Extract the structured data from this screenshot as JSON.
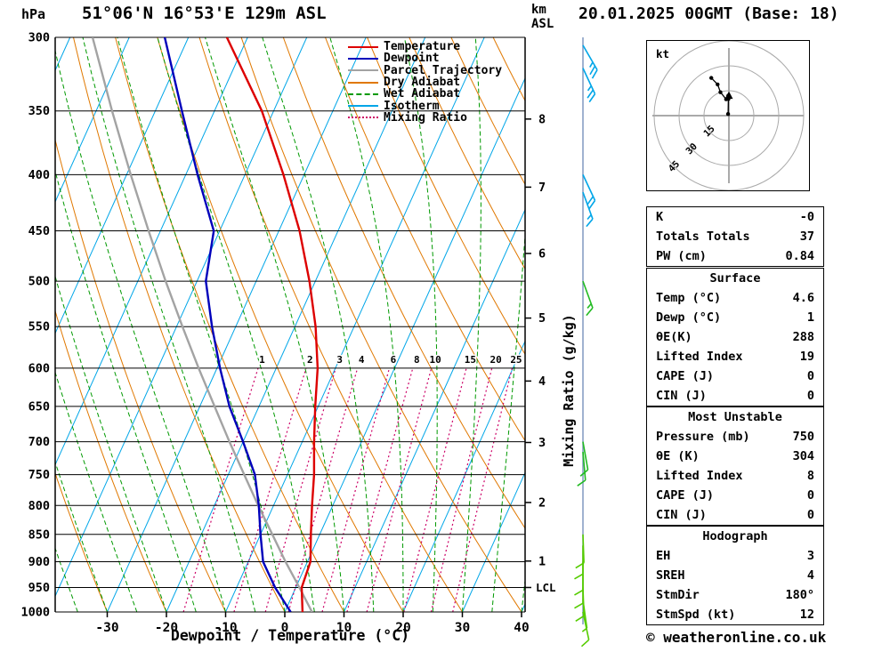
{
  "header": {
    "pressure_unit": "hPa",
    "station_title": "51°06'N 16°53'E 129m ASL",
    "km_label": "km",
    "asl_label": "ASL",
    "run_title": "20.01.2025 00GMT (Base: 18)"
  },
  "legend": {
    "items": [
      {
        "label": "Temperature",
        "color": "#dd0000",
        "style": "solid"
      },
      {
        "label": "Dewpoint",
        "color": "#0000bb",
        "style": "solid"
      },
      {
        "label": "Parcel Trajectory",
        "color": "#a3a3a3",
        "style": "solid"
      },
      {
        "label": "Dry Adiabat",
        "color": "#e07800",
        "style": "solid"
      },
      {
        "label": "Wet Adiabat",
        "color": "#009900",
        "style": "dashed"
      },
      {
        "label": "Isotherm",
        "color": "#00a6e8",
        "style": "solid"
      },
      {
        "label": "Mixing Ratio",
        "color": "#cc0066",
        "style": "dotted"
      }
    ]
  },
  "axes": {
    "pressure_ticks": [
      300,
      350,
      400,
      450,
      500,
      550,
      600,
      650,
      700,
      750,
      800,
      850,
      900,
      950,
      1000
    ],
    "temp_ticks": [
      -30,
      -20,
      -10,
      0,
      10,
      20,
      30,
      40
    ],
    "x_label": "Dewpoint / Temperature (°C)",
    "km_ticks": [
      1,
      2,
      3,
      4,
      5,
      6,
      7,
      8
    ],
    "lcl_label": "LCL",
    "mixing_axis_label": "Mixing Ratio (g/kg)"
  },
  "colors": {
    "temperature": "#dd0000",
    "dewpoint": "#0000bb",
    "parcel_trajectory": "#a3a3a3",
    "dry_adiabat": "#e07800",
    "wet_adiabat": "#009900",
    "isotherm": "#00a6e8",
    "mixing_ratio": "#cc0066",
    "grid": "#000000",
    "wind_staff": "#8099c0",
    "barb_upper": "#00a6e8",
    "barb_mid": "#22bb22",
    "barb_lower": "#55cc00"
  },
  "chart_data": {
    "type": "skewt-logp",
    "pressure_axis_range_hpa": [
      300,
      1000
    ],
    "temperature_axis_range_c": [
      -40,
      40
    ],
    "mixing_ratio_lines_gkg": [
      1,
      2,
      3,
      4,
      6,
      8,
      10,
      15,
      20,
      25
    ],
    "lcl_pressure_hpa": 950,
    "sounding": {
      "pressure_hpa": [
        1000,
        950,
        900,
        850,
        800,
        750,
        700,
        650,
        600,
        550,
        500,
        450,
        400,
        350,
        300
      ],
      "temperature_c": [
        3.0,
        1.0,
        0.5,
        -1.5,
        -3.5,
        -5.5,
        -8.0,
        -10.5,
        -13.0,
        -16.5,
        -21.0,
        -26.5,
        -33.5,
        -42.0,
        -53.5
      ],
      "dewpoint_c": [
        1.0,
        -3.5,
        -7.5,
        -10.0,
        -12.5,
        -15.5,
        -20.0,
        -25.0,
        -29.5,
        -34.0,
        -38.5,
        -41.0,
        -48.0,
        -55.5,
        -64.0
      ],
      "parcel_c": [
        4.6,
        0.6,
        -3.7,
        -8.0,
        -12.6,
        -17.3,
        -22.3,
        -27.5,
        -33.1,
        -39.0,
        -45.3,
        -52.0,
        -59.3,
        -67.3,
        -76.2
      ]
    },
    "wind_barbs": [
      {
        "p": 305,
        "speed_kt": 25,
        "dir_deg": 150
      },
      {
        "p": 320,
        "speed_kt": 25,
        "dir_deg": 155
      },
      {
        "p": 400,
        "speed_kt": 20,
        "dir_deg": 155
      },
      {
        "p": 415,
        "speed_kt": 15,
        "dir_deg": 160
      },
      {
        "p": 500,
        "speed_kt": 15,
        "dir_deg": 160
      },
      {
        "p": 700,
        "speed_kt": 10,
        "dir_deg": 170
      },
      {
        "p": 715,
        "speed_kt": 10,
        "dir_deg": 175
      },
      {
        "p": 850,
        "speed_kt": 12,
        "dir_deg": 178
      },
      {
        "p": 870,
        "speed_kt": 12,
        "dir_deg": 180
      },
      {
        "p": 900,
        "speed_kt": 10,
        "dir_deg": 180
      },
      {
        "p": 925,
        "speed_kt": 10,
        "dir_deg": 180
      },
      {
        "p": 950,
        "speed_kt": 10,
        "dir_deg": 178
      },
      {
        "p": 975,
        "speed_kt": 8,
        "dir_deg": 172
      },
      {
        "p": 1000,
        "speed_kt": 10,
        "dir_deg": 168
      }
    ],
    "hodograph": {
      "unit_label": "kt",
      "rings_kt": [
        15,
        30,
        45
      ],
      "trace_uv_kt": [
        [
          -0.5,
          1.0
        ],
        [
          -0.3,
          10.0
        ],
        [
          -0.4,
          12.0
        ],
        [
          -1.7,
          9.9
        ],
        [
          -5.1,
          14.1
        ],
        [
          -6.8,
          18.8
        ],
        [
          -10.6,
          22.7
        ]
      ],
      "storm_motion": {
        "dir_deg": 180,
        "speed_kt": 12
      }
    }
  },
  "tables": {
    "indices": {
      "rows": [
        [
          "K",
          "-0"
        ],
        [
          "Totals Totals",
          "37"
        ],
        [
          "PW (cm)",
          "0.84"
        ]
      ]
    },
    "surface": {
      "title": "Surface",
      "rows": [
        [
          "Temp (°C)",
          "4.6"
        ],
        [
          "Dewp (°C)",
          "1"
        ],
        [
          "θE(K)",
          "288"
        ],
        [
          "Lifted Index",
          "19"
        ],
        [
          "CAPE (J)",
          "0"
        ],
        [
          "CIN (J)",
          "0"
        ]
      ]
    },
    "most_unstable": {
      "title": "Most Unstable",
      "rows": [
        [
          "Pressure (mb)",
          "750"
        ],
        [
          "θE (K)",
          "304"
        ],
        [
          "Lifted Index",
          "8"
        ],
        [
          "CAPE (J)",
          "0"
        ],
        [
          "CIN (J)",
          "0"
        ]
      ]
    },
    "hodograph": {
      "title": "Hodograph",
      "rows": [
        [
          "EH",
          "3"
        ],
        [
          "SREH",
          "4"
        ],
        [
          "StmDir",
          "180°"
        ],
        [
          "StmSpd (kt)",
          "12"
        ]
      ]
    }
  },
  "footer": {
    "copyright": "© weatheronline.co.uk"
  }
}
